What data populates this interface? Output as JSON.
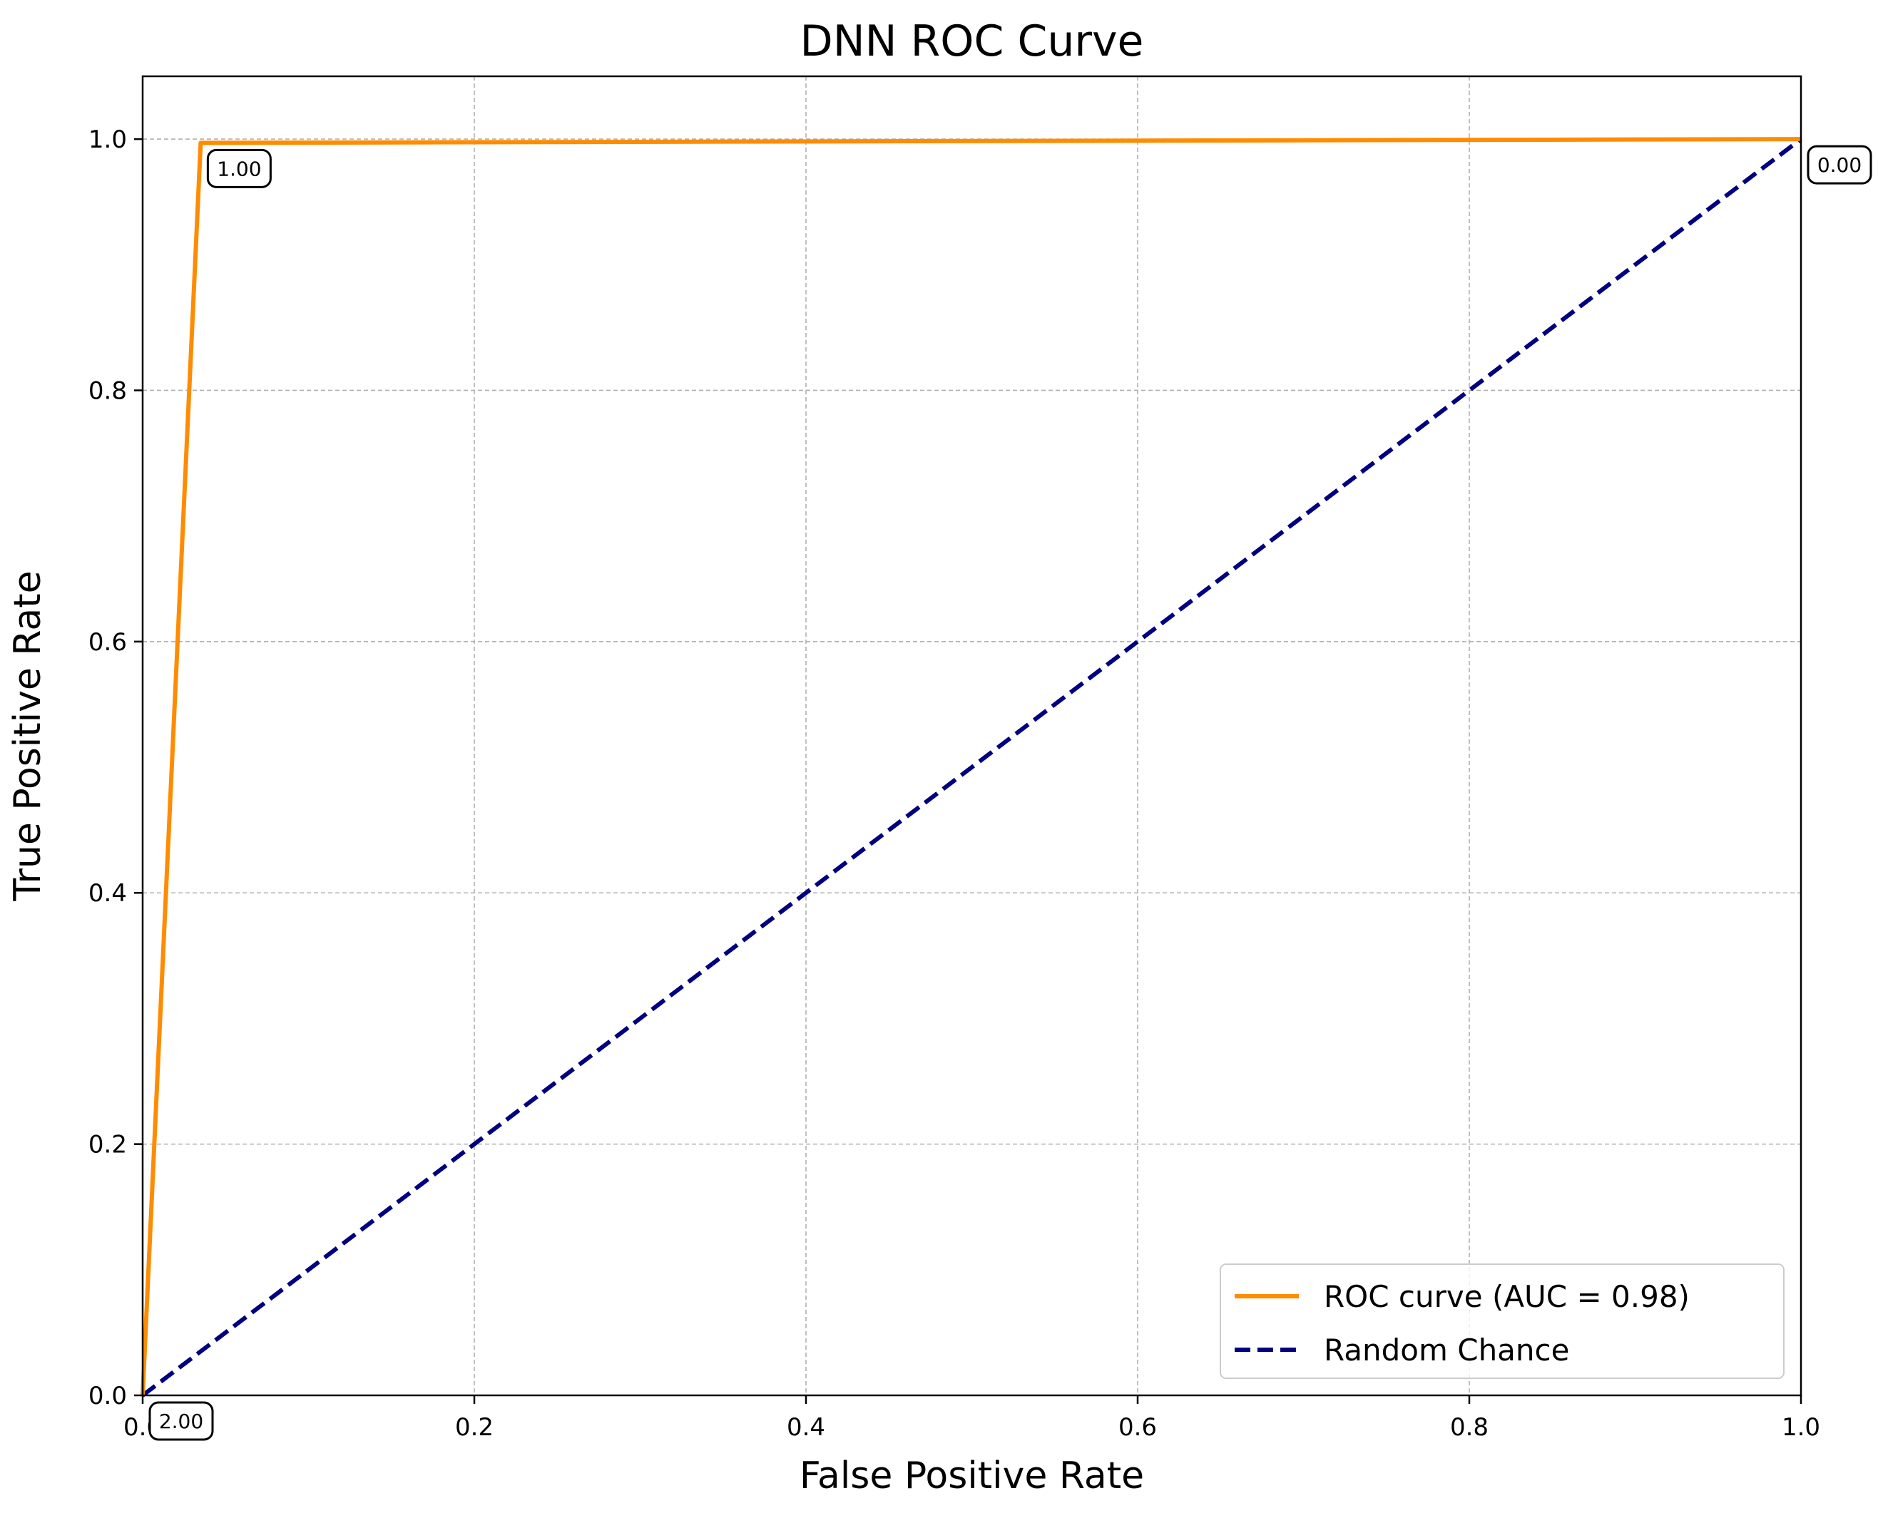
{
  "chart_data": {
    "type": "line",
    "title": "DNN ROC Curve",
    "xlabel": "False Positive Rate",
    "ylabel": "True Positive Rate",
    "xlim": [
      0.0,
      1.0
    ],
    "ylim": [
      0.0,
      1.05
    ],
    "x_ticks": [
      0.0,
      0.2,
      0.4,
      0.6,
      0.8,
      1.0
    ],
    "x_tick_labels": [
      "0.0",
      "0.2",
      "0.4",
      "0.6",
      "0.8",
      "1.0"
    ],
    "y_ticks": [
      0.0,
      0.2,
      0.4,
      0.6,
      0.8,
      1.0
    ],
    "y_tick_labels": [
      "0.0",
      "0.2",
      "0.4",
      "0.6",
      "0.8",
      "1.0"
    ],
    "grid": true,
    "legend_position": "lower-right",
    "series": [
      {
        "name": "ROC curve (AUC = 0.98)",
        "color": "#ff8c00",
        "style": "solid",
        "x": [
          0.0,
          0.035,
          1.0
        ],
        "y": [
          0.0,
          0.997,
          1.0
        ]
      },
      {
        "name": "Random Chance",
        "color": "#000080",
        "style": "dashed",
        "x": [
          0.0,
          1.0
        ],
        "y": [
          0.0,
          1.0
        ]
      }
    ],
    "annotations": [
      {
        "text": "2.00",
        "x": 0.0,
        "y": 0.0
      },
      {
        "text": "1.00",
        "x": 0.035,
        "y": 0.997
      },
      {
        "text": "0.00",
        "x": 1.0,
        "y": 1.0
      }
    ]
  }
}
